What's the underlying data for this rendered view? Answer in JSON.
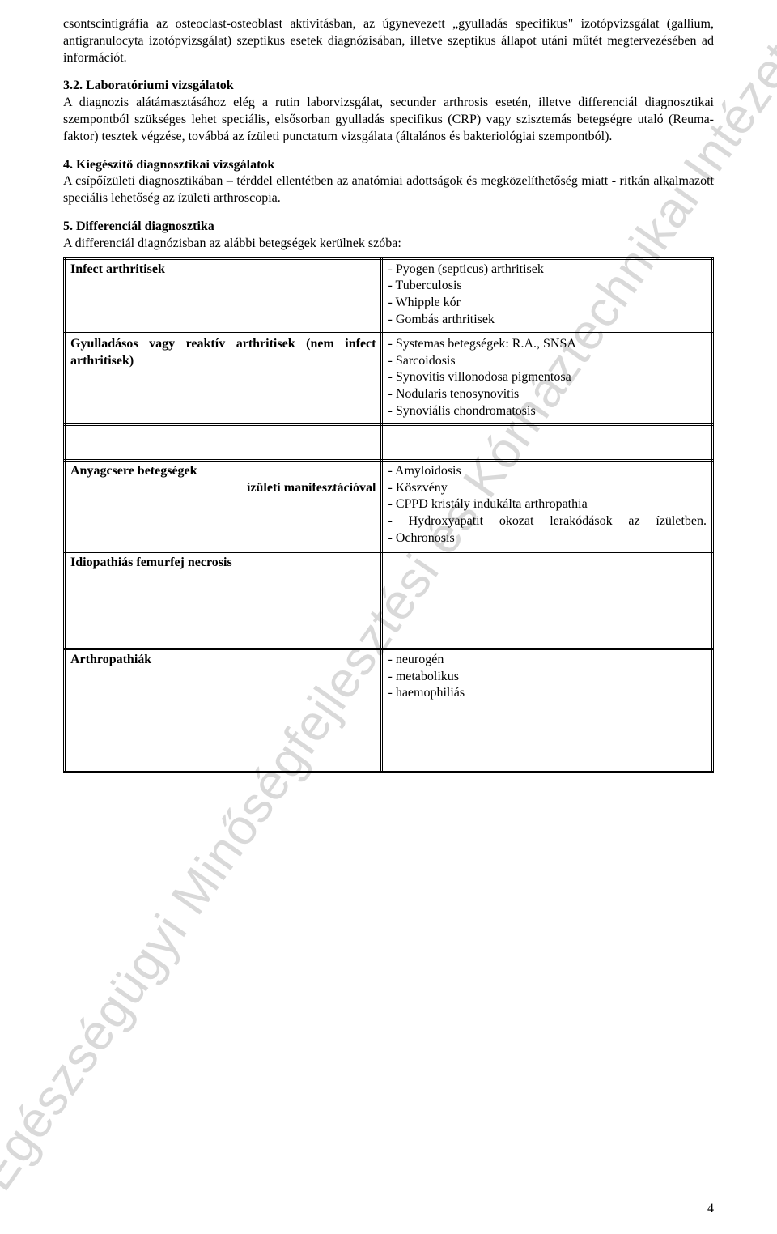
{
  "watermark": "Egészségügyi Minőségfejlesztési és Kórháztechnikai Intézet",
  "intro_para": "csontscintigráfia az osteoclast-osteoblast aktivitásban, az úgynevezett „gyulladás specifikus\" izotópvizsgálat (gallium, antigranulocyta izotópvizsgálat) szeptikus esetek diagnózisában, illetve szeptikus állapot utáni műtét megtervezésében ad információt.",
  "section32": {
    "title": "3.2. Laboratóriumi vizsgálatok",
    "body": "A diagnozis alátámasztásához elég a rutin laborvizsgálat, secunder arthrosis esetén, illetve differenciál diagnosztikai szempontból szükséges lehet speciális, elsősorban gyulladás specifikus (CRP) vagy szisztemás betegségre utaló (Reuma-faktor) tesztek végzése, továbbá az ízületi punctatum vizsgálata (általános és bakteriológiai szempontból)."
  },
  "section4": {
    "title": "4. Kiegészítő diagnosztikai vizsgálatok",
    "body": "A csípőízületi diagnosztikában – térddel ellentétben az anatómiai adottságok és megközelíthetőség miatt - ritkán alkalmazott speciális lehetőség az ízületi arthroscopia."
  },
  "section5": {
    "title": "5. Differenciál diagnosztika",
    "body": "A differenciál diagnózisban az alábbi betegségek kerülnek szóba:"
  },
  "table": {
    "rows": [
      {
        "left_title": "Infect arthritisek",
        "left_extra": "",
        "right": "- Pyogen (septicus) arthritisek\n- Tuberculosis\n- Whipple kór\n- Gombás arthritisek"
      },
      {
        "left_title": "Gyulladásos vagy reaktív arthritisek (nem infect arthritisek)",
        "left_extra": "",
        "right": "- Systemas betegségek: R.A., SNSA\n- Sarcoidosis\n- Synovitis villonodosa pigmentosa\n- Nodularis tenosynovitis\n- Synoviális chondromatosis"
      },
      {
        "left_title": "Anyagcsere betegségek",
        "left_extra": "ízületi manifesztációval",
        "right": "- Amyloidosis\n- Köszvény\n- CPPD kristály indukálta arthropathia\n- Hydroxyapatit okozat lerakódások az ízületben.\n- Ochronosis"
      },
      {
        "left_title": "Idiopathiás femurfej necrosis",
        "left_extra": "",
        "right": ""
      },
      {
        "left_title": "Arthropathiák",
        "left_extra": "",
        "right": "- neurogén\n- metabolikus\n- haemophiliás"
      }
    ]
  },
  "page_number": "4"
}
